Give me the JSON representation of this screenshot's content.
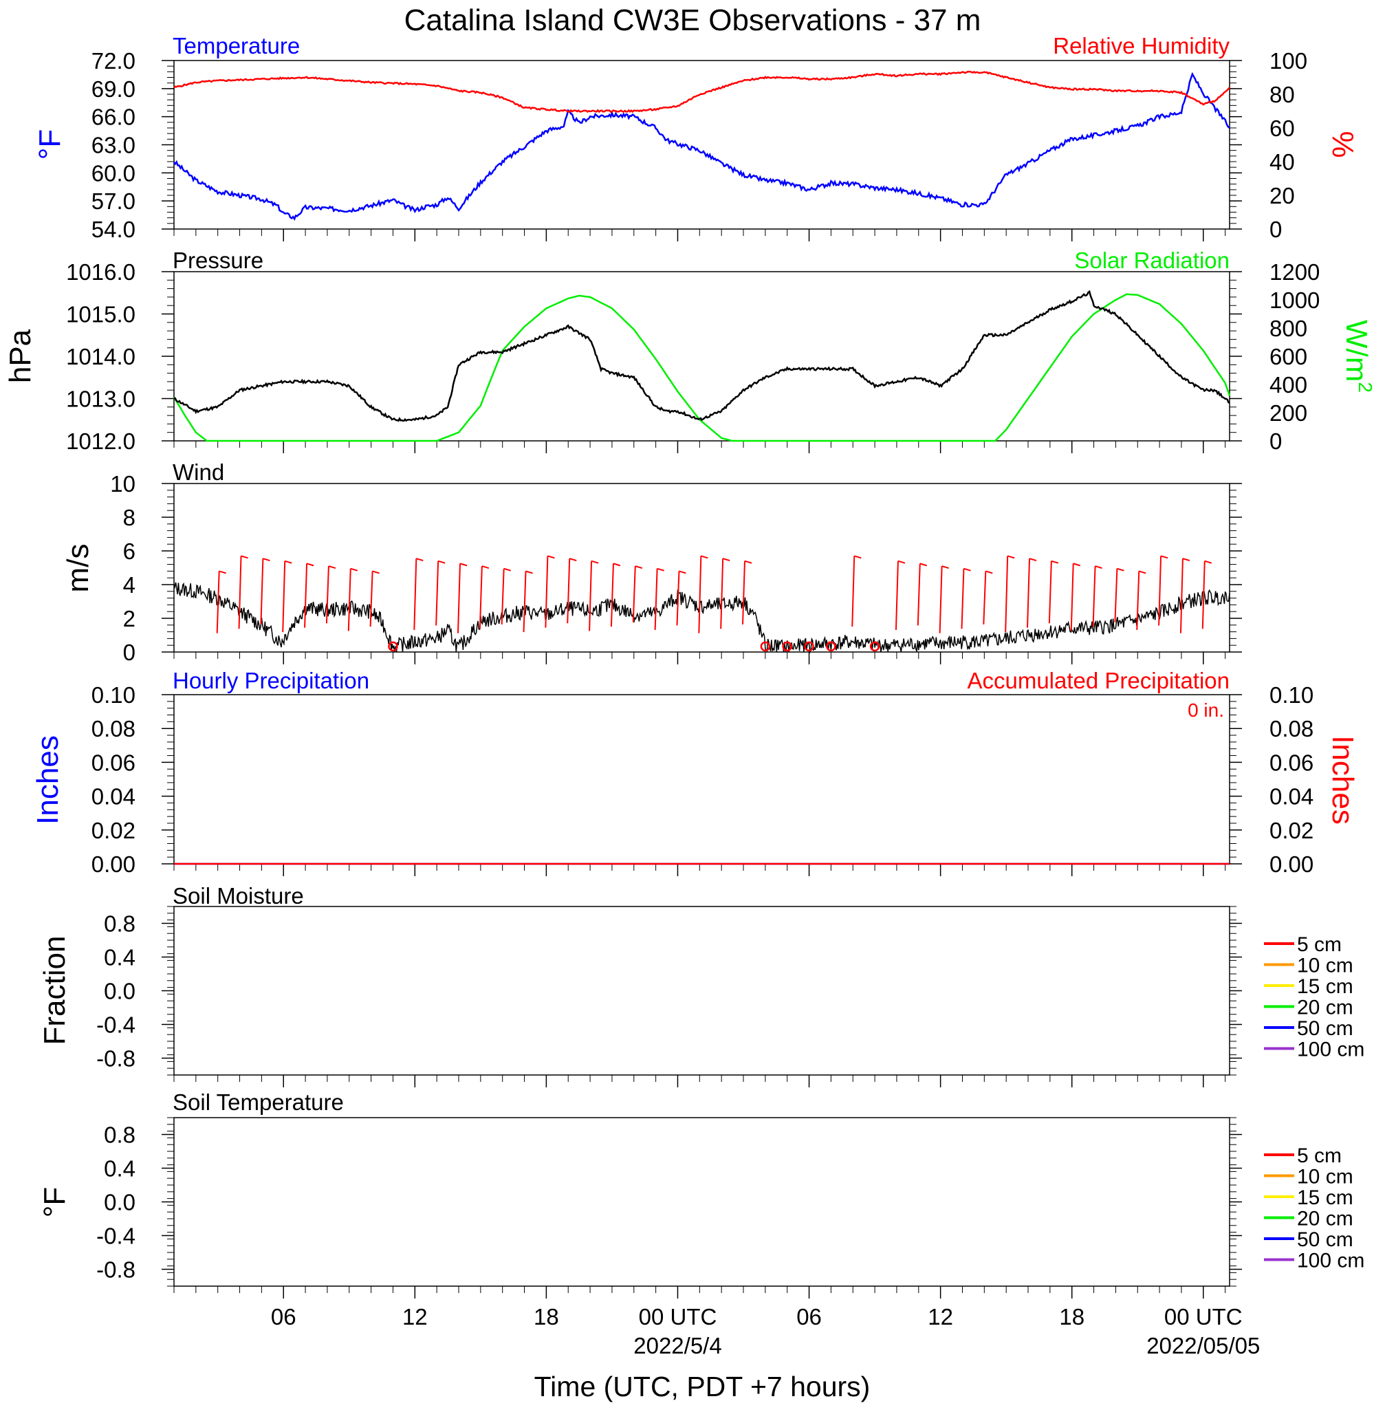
{
  "figure": {
    "title": "Catalina Island CW3E Observations - 37 m",
    "xlabel": "Time (UTC, PDT +7 hours)",
    "x_ticks": [
      {
        "hour": 6,
        "label": "06",
        "sub": ""
      },
      {
        "hour": 12,
        "label": "12",
        "sub": ""
      },
      {
        "hour": 18,
        "label": "18",
        "sub": ""
      },
      {
        "hour": 24,
        "label": "00 UTC",
        "sub": "2022/5/4"
      },
      {
        "hour": 30,
        "label": "06",
        "sub": ""
      },
      {
        "hour": 36,
        "label": "12",
        "sub": ""
      },
      {
        "hour": 42,
        "label": "18",
        "sub": ""
      },
      {
        "hour": 48,
        "label": "00 UTC",
        "sub": "2022/05/05"
      }
    ],
    "x_range_hours": [
      1,
      49.2
    ]
  },
  "colors": {
    "temperature": "#0000ff",
    "humidity": "#ff0000",
    "pressure": "#000000",
    "solar": "#00ee00",
    "wind_speed": "#000000",
    "wind_barb": "#ff0000",
    "hourly_precip": "#0000ff",
    "accum_precip": "#ff0000"
  },
  "panels": {
    "temp_rh": {
      "left_title": "Temperature",
      "right_title": "Relative Humidity",
      "left_unit": "°F",
      "right_unit": "%",
      "left_ticks": [
        "54.0",
        "57.0",
        "60.0",
        "63.0",
        "66.0",
        "69.0",
        "72.0"
      ],
      "right_ticks": [
        "0",
        "20",
        "40",
        "60",
        "80",
        "100"
      ]
    },
    "pressure_solar": {
      "left_title": "Pressure",
      "right_title": "Solar Radiation",
      "left_unit": "hPa",
      "right_unit": "W/m",
      "right_unit_sup": "2",
      "left_ticks": [
        "1012.0",
        "1013.0",
        "1014.0",
        "1015.0",
        "1016.0"
      ],
      "right_ticks": [
        "0",
        "200",
        "400",
        "600",
        "800",
        "1000",
        "1200"
      ]
    },
    "wind": {
      "left_title": "Wind",
      "left_unit": "m/s",
      "left_ticks": [
        "0",
        "2",
        "4",
        "6",
        "8",
        "10"
      ]
    },
    "precip": {
      "left_title": "Hourly Precipitation",
      "right_title": "Accumulated Precipitation",
      "total_label": "0 in.",
      "left_unit": "Inches",
      "right_unit": "Inches",
      "left_ticks": [
        "0.00",
        "0.02",
        "0.04",
        "0.06",
        "0.08",
        "0.10"
      ],
      "right_ticks": [
        "0.00",
        "0.02",
        "0.04",
        "0.06",
        "0.08",
        "0.10"
      ]
    },
    "soil_moisture": {
      "left_title": "Soil Moisture",
      "left_unit": "Fraction",
      "left_ticks": [
        "-0.8",
        "-0.4",
        "0.0",
        "0.4",
        "0.8"
      ],
      "legend": [
        {
          "label": "5 cm",
          "color": "#ff0000"
        },
        {
          "label": "10 cm",
          "color": "#ff9900"
        },
        {
          "label": "15 cm",
          "color": "#ffee00"
        },
        {
          "label": "20 cm",
          "color": "#00ee00"
        },
        {
          "label": "50 cm",
          "color": "#0000ff"
        },
        {
          "label": "100 cm",
          "color": "#9933cc"
        }
      ]
    },
    "soil_temperature": {
      "left_title": "Soil Temperature",
      "left_unit": "°F",
      "left_ticks": [
        "-0.8",
        "-0.4",
        "0.0",
        "0.4",
        "0.8"
      ],
      "legend": [
        {
          "label": "5 cm",
          "color": "#ff0000"
        },
        {
          "label": "10 cm",
          "color": "#ff9900"
        },
        {
          "label": "15 cm",
          "color": "#ffee00"
        },
        {
          "label": "20 cm",
          "color": "#00ee00"
        },
        {
          "label": "50 cm",
          "color": "#0000ff"
        },
        {
          "label": "100 cm",
          "color": "#9933cc"
        }
      ]
    }
  },
  "chart_data": [
    {
      "type": "line",
      "title": "Temperature",
      "ylabel": "°F",
      "ylim": [
        54,
        72
      ],
      "x_units": "hours UTC from 2022-05-03 00 UTC",
      "series": [
        {
          "name": "Temperature",
          "x": [
            1,
            2,
            3,
            4,
            5,
            5.7,
            6,
            6.5,
            7,
            8,
            9,
            10,
            11,
            11.5,
            12,
            12.5,
            13,
            13.5,
            14,
            15,
            16,
            17,
            18,
            18.8,
            19,
            19.5,
            20,
            21,
            22,
            23,
            23.5,
            24,
            25,
            26,
            27,
            28,
            29,
            30,
            31,
            32,
            33,
            34,
            35,
            36,
            37,
            37.5,
            38,
            39,
            40,
            41,
            42,
            43,
            44,
            45,
            46,
            46.5,
            47,
            47.5,
            48,
            48.5,
            49,
            49.2
          ],
          "y": [
            61.2,
            59.2,
            58.0,
            57.6,
            57.2,
            56.5,
            55.7,
            55.2,
            56.3,
            56.2,
            56.0,
            56.5,
            57.1,
            56.5,
            56.0,
            56.4,
            56.6,
            57.4,
            56.2,
            59.0,
            61.2,
            62.8,
            64.5,
            65.0,
            66.5,
            65.3,
            66.0,
            66.2,
            66.0,
            64.8,
            63.5,
            63.1,
            62.4,
            61.0,
            59.8,
            59.2,
            58.9,
            58.2,
            58.9,
            58.8,
            58.4,
            58.2,
            57.8,
            57.3,
            56.6,
            56.6,
            56.6,
            59.8,
            61.0,
            62.4,
            63.6,
            64.0,
            64.5,
            65.0,
            66.0,
            66.2,
            66.5,
            70.5,
            68.5,
            67.0,
            65.5,
            64.8
          ]
        }
      ]
    },
    {
      "type": "line",
      "title": "Relative Humidity",
      "ylabel": "%",
      "ylim": [
        0,
        100
      ],
      "series": [
        {
          "name": "Relative Humidity",
          "x": [
            1,
            2,
            3,
            5,
            7,
            8,
            10,
            12,
            13,
            14,
            15,
            16,
            17,
            18,
            19,
            20,
            21,
            22,
            23,
            24,
            25,
            26,
            27,
            28,
            29,
            30,
            31,
            32,
            33,
            34,
            35,
            36,
            37,
            38,
            39,
            40,
            41,
            42,
            43,
            44,
            45,
            46,
            47,
            48,
            48.5,
            49,
            49.2
          ],
          "y": [
            84,
            87,
            88,
            89,
            90,
            89,
            87,
            86,
            85,
            82,
            81,
            78,
            72,
            71,
            70,
            70,
            70,
            70,
            71,
            73,
            80,
            84,
            88,
            90,
            90,
            89,
            89,
            90,
            92,
            91,
            92,
            92,
            93,
            93,
            90,
            87,
            84,
            83,
            83,
            82,
            82,
            82,
            81,
            74,
            76,
            81,
            84
          ]
        }
      ]
    },
    {
      "type": "line",
      "title": "Pressure",
      "ylabel": "hPa",
      "ylim": [
        1012,
        1016
      ],
      "series": [
        {
          "name": "Pressure",
          "x": [
            1,
            2,
            3,
            4,
            5,
            6,
            7,
            8,
            9,
            10,
            11,
            12,
            13,
            13.5,
            14,
            15,
            16,
            17,
            18,
            19,
            20,
            20.5,
            21,
            22,
            23,
            23.5,
            24,
            25,
            26,
            27,
            28,
            29,
            30,
            31,
            32,
            33,
            34,
            35,
            36,
            37,
            38,
            39,
            40,
            41,
            42,
            42.8,
            43,
            44,
            45,
            46,
            47,
            48,
            48.5,
            49,
            49.2
          ],
          "y": [
            1013.0,
            1012.7,
            1012.8,
            1013.2,
            1013.3,
            1013.4,
            1013.4,
            1013.4,
            1013.3,
            1012.8,
            1012.5,
            1012.5,
            1012.6,
            1012.8,
            1013.8,
            1014.1,
            1014.1,
            1014.3,
            1014.5,
            1014.7,
            1014.4,
            1013.7,
            1013.6,
            1013.5,
            1012.8,
            1012.7,
            1012.7,
            1012.5,
            1012.7,
            1013.2,
            1013.5,
            1013.7,
            1013.7,
            1013.7,
            1013.7,
            1013.3,
            1013.4,
            1013.5,
            1013.3,
            1013.7,
            1014.5,
            1014.5,
            1014.8,
            1015.1,
            1015.3,
            1015.5,
            1015.2,
            1015.0,
            1014.5,
            1014.0,
            1013.5,
            1013.2,
            1013.2,
            1013.0,
            1012.9
          ]
        }
      ]
    },
    {
      "type": "line",
      "title": "Solar Radiation",
      "ylabel": "W/m2",
      "ylim": [
        0,
        1200
      ],
      "series": [
        {
          "name": "Solar Radiation",
          "x": [
            1,
            1.5,
            2,
            2.5,
            12,
            13,
            14,
            15,
            15.5,
            16,
            17,
            18,
            19,
            19.5,
            20,
            21,
            22,
            23,
            24,
            25,
            26,
            26.5,
            38.5,
            39,
            40,
            41,
            42,
            43,
            44,
            44.5,
            45,
            46,
            47,
            48,
            49,
            49.2
          ],
          "y": [
            310,
            180,
            60,
            0,
            0,
            0,
            60,
            250,
            450,
            640,
            810,
            940,
            1010,
            1030,
            1020,
            940,
            790,
            580,
            350,
            150,
            20,
            0,
            0,
            80,
            300,
            520,
            740,
            900,
            1000,
            1040,
            1035,
            970,
            830,
            640,
            410,
            320
          ]
        }
      ]
    },
    {
      "type": "line",
      "title": "Wind",
      "ylabel": "m/s",
      "ylim": [
        0,
        10
      ],
      "series": [
        {
          "name": "Wind Speed",
          "x": [
            1,
            2,
            3,
            4,
            5,
            5.9,
            6.5,
            7,
            8,
            9,
            10,
            10.5,
            11,
            12,
            13,
            13.5,
            14,
            15,
            16,
            17,
            18,
            19,
            20,
            21,
            22,
            23,
            24,
            25,
            26,
            27,
            27.5,
            28,
            29,
            30,
            31,
            32,
            33,
            34,
            35,
            36,
            37,
            38,
            39,
            40,
            41,
            42,
            43,
            44,
            45,
            46,
            47,
            48,
            49,
            49.2
          ],
          "y": [
            3.8,
            3.6,
            3.2,
            2.4,
            1.6,
            0.6,
            1.8,
            2.6,
            2.5,
            2.6,
            2.4,
            1.8,
            0.3,
            0.6,
            0.8,
            1.3,
            0.2,
            1.8,
            2.1,
            2.4,
            2.2,
            2.6,
            2.4,
            2.8,
            2.2,
            2.3,
            3.3,
            2.7,
            2.8,
            3.0,
            2.2,
            0.4,
            0.3,
            0.4,
            0.5,
            0.6,
            0.4,
            0.4,
            0.5,
            0.5,
            0.6,
            0.6,
            0.8,
            1.0,
            1.2,
            1.4,
            1.4,
            1.6,
            1.9,
            2.3,
            2.9,
            3.2,
            3.3,
            3.5
          ]
        }
      ],
      "barb_hours": [
        3,
        4,
        5,
        6,
        7,
        8,
        9,
        10,
        11,
        12,
        13,
        14,
        15,
        16,
        17,
        18,
        19,
        20,
        21,
        22,
        23,
        24,
        25,
        26,
        27,
        28,
        29,
        30,
        31,
        32,
        33,
        34,
        35,
        36,
        37,
        38,
        39,
        40,
        41,
        42,
        43,
        44,
        45,
        46,
        47,
        48
      ],
      "calm_hours": [
        11,
        28,
        29,
        30,
        31,
        33
      ]
    },
    {
      "type": "line",
      "title": "Hourly Precipitation",
      "ylabel": "Inches",
      "ylim": [
        0,
        0.1
      ],
      "series": [
        {
          "name": "Hourly Precipitation",
          "x": [
            1,
            49.2
          ],
          "y": [
            0,
            0
          ]
        },
        {
          "name": "Accumulated Precipitation",
          "x": [
            1,
            49.2
          ],
          "y": [
            0,
            0
          ]
        }
      ]
    },
    {
      "type": "line",
      "title": "Soil Moisture",
      "ylabel": "Fraction",
      "ylim": [
        -1,
        1
      ],
      "series": []
    },
    {
      "type": "line",
      "title": "Soil Temperature",
      "ylabel": "°F",
      "ylim": [
        -1,
        1
      ],
      "series": []
    }
  ]
}
